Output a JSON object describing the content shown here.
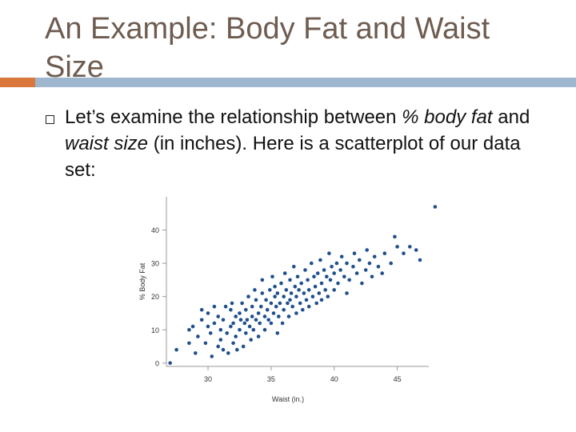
{
  "slide": {
    "title": "An Example: Body Fat and Waist Size",
    "accent_color": "#d9773c",
    "rule_color": "#9fb6cf",
    "bullet": {
      "t1": "Let’s examine the relationship between ",
      "t2": "% body fat",
      "t3": " and ",
      "t4": "waist size",
      "t5": " (in inches). Here is a scatterplot of our data set:"
    }
  },
  "chart_data": {
    "type": "scatter",
    "xlabel": "Waist (in.)",
    "ylabel": "% Body Fat",
    "xlim": [
      26.7,
      47.5
    ],
    "ylim": [
      -1,
      50
    ],
    "xticks": [
      30,
      35,
      40,
      45
    ],
    "yticks": [
      0,
      10,
      20,
      30,
      40
    ],
    "point_color": "#1f4f8c",
    "grid": false,
    "points": [
      [
        27,
        0
      ],
      [
        27.5,
        4
      ],
      [
        28.5,
        6
      ],
      [
        28.5,
        10
      ],
      [
        28.8,
        11
      ],
      [
        29,
        3
      ],
      [
        29.2,
        8
      ],
      [
        29.5,
        13
      ],
      [
        29.5,
        16
      ],
      [
        29.8,
        6
      ],
      [
        30,
        11
      ],
      [
        30,
        15
      ],
      [
        30.2,
        9
      ],
      [
        30.3,
        2
      ],
      [
        30.5,
        12
      ],
      [
        30.5,
        17
      ],
      [
        30.8,
        5
      ],
      [
        30.8,
        14
      ],
      [
        31,
        7
      ],
      [
        31,
        10
      ],
      [
        31.2,
        4
      ],
      [
        31.2,
        13
      ],
      [
        31.4,
        17
      ],
      [
        31.5,
        9
      ],
      [
        31.6,
        3
      ],
      [
        31.8,
        11
      ],
      [
        31.8,
        16
      ],
      [
        31.9,
        18
      ],
      [
        32,
        6
      ],
      [
        32,
        12
      ],
      [
        32.2,
        14
      ],
      [
        32.2,
        8
      ],
      [
        32.3,
        4
      ],
      [
        32.5,
        10
      ],
      [
        32.5,
        15
      ],
      [
        32.6,
        13
      ],
      [
        32.7,
        18
      ],
      [
        32.8,
        5
      ],
      [
        32.9,
        12
      ],
      [
        33,
        9
      ],
      [
        33,
        16
      ],
      [
        33.1,
        13
      ],
      [
        33.2,
        20
      ],
      [
        33.3,
        11
      ],
      [
        33.4,
        7
      ],
      [
        33.5,
        14
      ],
      [
        33.5,
        17
      ],
      [
        33.6,
        10
      ],
      [
        33.7,
        22
      ],
      [
        33.8,
        13
      ],
      [
        33.8,
        19
      ],
      [
        34,
        8
      ],
      [
        34,
        15
      ],
      [
        34.1,
        12
      ],
      [
        34.2,
        17
      ],
      [
        34.3,
        21
      ],
      [
        34.3,
        25
      ],
      [
        34.5,
        10
      ],
      [
        34.5,
        14
      ],
      [
        34.6,
        19
      ],
      [
        34.7,
        16
      ],
      [
        34.8,
        13
      ],
      [
        34.9,
        22
      ],
      [
        35,
        12
      ],
      [
        35,
        18
      ],
      [
        35.1,
        26
      ],
      [
        35.2,
        15
      ],
      [
        35.3,
        20
      ],
      [
        35.3,
        23
      ],
      [
        35.4,
        17
      ],
      [
        35.5,
        9
      ],
      [
        35.5,
        21
      ],
      [
        35.6,
        14
      ],
      [
        35.7,
        18
      ],
      [
        35.8,
        24
      ],
      [
        35.9,
        12
      ],
      [
        36,
        16
      ],
      [
        36,
        20
      ],
      [
        36.1,
        27
      ],
      [
        36.2,
        22
      ],
      [
        36.3,
        18
      ],
      [
        36.4,
        14
      ],
      [
        36.5,
        25
      ],
      [
        36.5,
        19
      ],
      [
        36.6,
        21
      ],
      [
        36.7,
        17
      ],
      [
        36.8,
        29
      ],
      [
        36.9,
        23
      ],
      [
        37,
        15
      ],
      [
        37,
        20
      ],
      [
        37.1,
        26
      ],
      [
        37.2,
        22
      ],
      [
        37.3,
        18
      ],
      [
        37.4,
        24
      ],
      [
        37.5,
        16
      ],
      [
        37.6,
        21
      ],
      [
        37.7,
        28
      ],
      [
        37.8,
        19
      ],
      [
        37.9,
        25
      ],
      [
        38,
        22
      ],
      [
        38,
        17
      ],
      [
        38.2,
        30
      ],
      [
        38.3,
        20
      ],
      [
        38.4,
        26
      ],
      [
        38.5,
        23
      ],
      [
        38.6,
        18
      ],
      [
        38.7,
        27
      ],
      [
        38.8,
        21
      ],
      [
        38.9,
        31
      ],
      [
        39,
        24
      ],
      [
        39,
        19
      ],
      [
        39.2,
        28
      ],
      [
        39.3,
        22
      ],
      [
        39.4,
        26
      ],
      [
        39.5,
        20
      ],
      [
        39.6,
        33
      ],
      [
        39.7,
        25
      ],
      [
        39.8,
        29
      ],
      [
        40,
        22
      ],
      [
        40,
        27
      ],
      [
        40.2,
        30
      ],
      [
        40.3,
        24
      ],
      [
        40.5,
        28
      ],
      [
        40.6,
        32
      ],
      [
        40.8,
        26
      ],
      [
        41,
        21
      ],
      [
        41,
        30
      ],
      [
        41.2,
        25
      ],
      [
        41.5,
        29
      ],
      [
        41.6,
        33
      ],
      [
        41.8,
        27
      ],
      [
        42,
        31
      ],
      [
        42.2,
        24
      ],
      [
        42.5,
        28
      ],
      [
        42.6,
        34
      ],
      [
        42.8,
        30
      ],
      [
        43,
        26
      ],
      [
        43.2,
        32
      ],
      [
        43.5,
        29
      ],
      [
        43.8,
        27
      ],
      [
        44,
        33
      ],
      [
        44.5,
        30
      ],
      [
        45,
        35
      ],
      [
        44.8,
        38
      ],
      [
        45.5,
        33
      ],
      [
        46,
        35
      ],
      [
        46.5,
        34
      ],
      [
        46.8,
        31
      ],
      [
        48,
        47
      ],
      [
        49.2,
        34
      ]
    ]
  }
}
